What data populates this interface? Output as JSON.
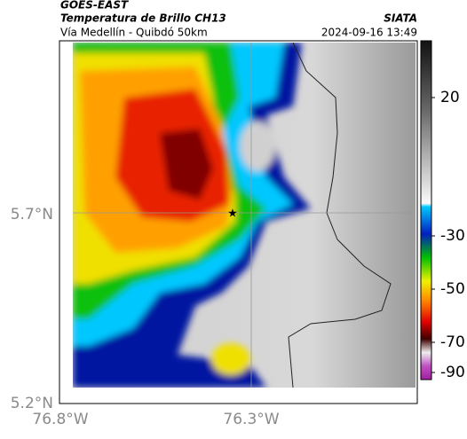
{
  "header": {
    "satellite": "GOES-EAST",
    "title": "Temperatura de Brillo CH13",
    "source": "SIATA",
    "route": "Vía Medellín - Quibdó 50km",
    "timestamp": "2024-09-16 13:49"
  },
  "map": {
    "lat_labels": [
      "5.7°N",
      "5.2°N"
    ],
    "lon_labels": [
      "76.8°W",
      "76.3°W"
    ]
  },
  "colorbar": {
    "tick_labels": [
      "20",
      "-30",
      "-50",
      "-70",
      "-90"
    ]
  }
}
